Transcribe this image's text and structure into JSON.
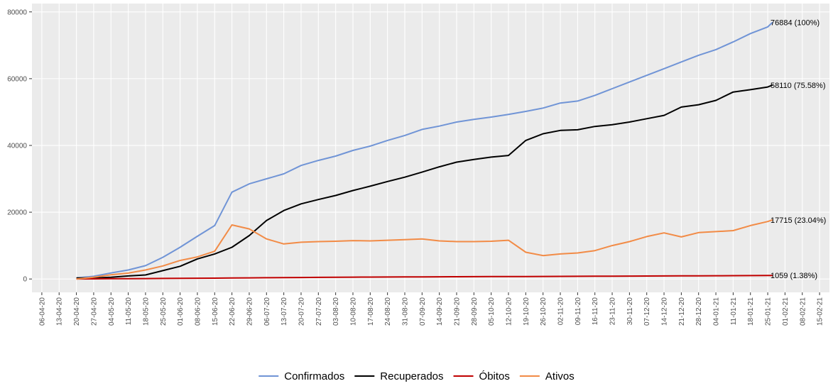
{
  "chart_data": {
    "type": "line",
    "x": [
      "20-04-20",
      "27-04-20",
      "04-05-20",
      "11-05-20",
      "18-05-20",
      "25-05-20",
      "01-06-20",
      "08-06-20",
      "15-06-20",
      "22-06-20",
      "29-06-20",
      "06-07-20",
      "13-07-20",
      "20-07-20",
      "27-07-20",
      "03-08-20",
      "10-08-20",
      "17-08-20",
      "24-08-20",
      "31-08-20",
      "07-09-20",
      "14-09-20",
      "21-09-20",
      "28-09-20",
      "05-10-20",
      "12-10-20",
      "19-10-20",
      "26-10-20",
      "02-11-20",
      "09-11-20",
      "16-11-20",
      "23-11-20",
      "30-11-20",
      "07-12-20",
      "14-12-20",
      "21-12-20",
      "28-12-20",
      "04-01-21",
      "11-01-21",
      "18-01-21",
      "25-01-21",
      "27-01-21"
    ],
    "series": [
      {
        "name": "Confirmados",
        "color": "#7094d6",
        "end_label": "76884 (100%)",
        "values": [
          300,
          800,
          1800,
          2700,
          4000,
          6500,
          9500,
          12800,
          16000,
          26000,
          28500,
          30000,
          31500,
          34000,
          35500,
          36800,
          38500,
          39800,
          41500,
          43000,
          44800,
          45800,
          47000,
          47800,
          48500,
          49300,
          50200,
          51200,
          52700,
          53300,
          55000,
          57000,
          59000,
          61000,
          63000,
          65000,
          67000,
          68700,
          71000,
          73500,
          75500,
          76884
        ]
      },
      {
        "name": "Recuperados",
        "color": "#000000",
        "end_label": "58110 (75.58%)",
        "values": [
          300,
          300,
          500,
          900,
          1200,
          2500,
          3800,
          6000,
          7500,
          9500,
          13000,
          17500,
          20500,
          22500,
          23800,
          25000,
          26500,
          27800,
          29200,
          30500,
          32000,
          33600,
          35000,
          35800,
          36500,
          37000,
          41500,
          43500,
          44500,
          44700,
          45700,
          46200,
          47000,
          48000,
          49000,
          51500,
          52200,
          53500,
          56000,
          56700,
          57500,
          58110
        ]
      },
      {
        "name": "Óbitos",
        "color": "#c00000",
        "end_label": "1059 (1.38%)",
        "values": [
          20,
          40,
          70,
          100,
          130,
          160,
          200,
          230,
          260,
          300,
          340,
          380,
          410,
          440,
          480,
          510,
          540,
          560,
          590,
          610,
          630,
          650,
          670,
          690,
          710,
          730,
          750,
          770,
          790,
          810,
          830,
          850,
          870,
          890,
          910,
          930,
          950,
          970,
          990,
          1010,
          1040,
          1059
        ]
      },
      {
        "name": "Ativos",
        "color": "#f28b46",
        "end_label": "17715 (23.04%)",
        "values": [
          0,
          500,
          1280,
          1750,
          2700,
          3900,
          5550,
          6600,
          8300,
          16200,
          15000,
          12000,
          10500,
          11000,
          11200,
          11300,
          11500,
          11400,
          11600,
          11800,
          12000,
          11400,
          11200,
          11200,
          11300,
          11600,
          8000,
          7000,
          7500,
          7800,
          8500,
          10000,
          11200,
          12700,
          13800,
          12600,
          13900,
          14200,
          14500,
          16000,
          17200,
          17715
        ]
      }
    ],
    "xlim": [
      "02-04-20",
      "19-02-21"
    ],
    "xticks": [
      "06-04-20",
      "13-04-20",
      "20-04-20",
      "27-04-20",
      "04-05-20",
      "11-05-20",
      "18-05-20",
      "25-05-20",
      "01-06-20",
      "08-06-20",
      "15-06-20",
      "22-06-20",
      "29-06-20",
      "06-07-20",
      "13-07-20",
      "20-07-20",
      "27-07-20",
      "03-08-20",
      "10-08-20",
      "17-08-20",
      "24-08-20",
      "31-08-20",
      "07-09-20",
      "14-09-20",
      "21-09-20",
      "28-09-20",
      "05-10-20",
      "12-10-20",
      "19-10-20",
      "26-10-20",
      "02-11-20",
      "09-11-20",
      "16-11-20",
      "23-11-20",
      "30-11-20",
      "07-12-20",
      "14-12-20",
      "21-12-20",
      "28-12-20",
      "04-01-21",
      "11-01-21",
      "18-01-21",
      "25-01-21",
      "01-02-21",
      "08-02-21",
      "15-02-21"
    ],
    "ylim": [
      -4000,
      82500
    ],
    "yticks": [
      0,
      20000,
      40000,
      60000,
      80000
    ],
    "grid": true,
    "legend": "bottom"
  }
}
